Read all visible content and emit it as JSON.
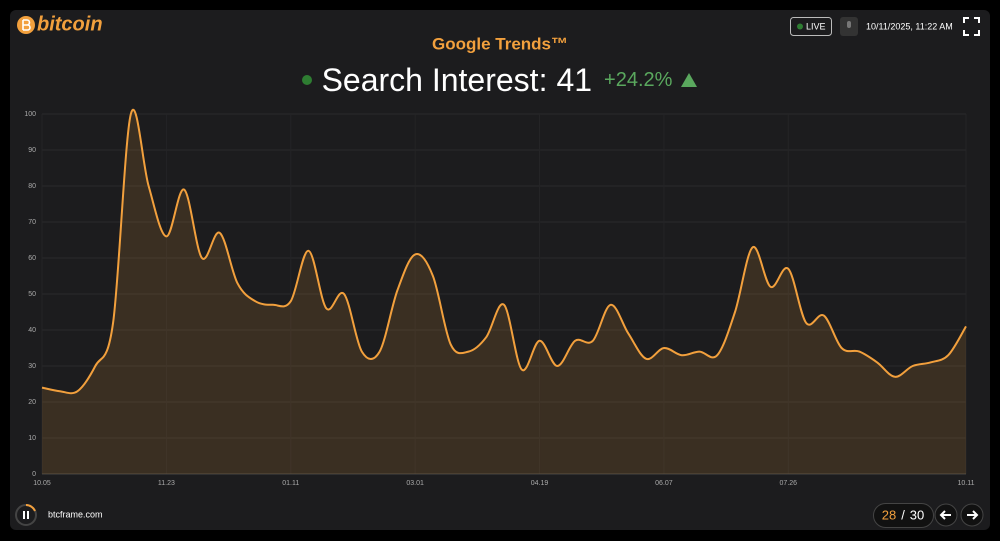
{
  "header": {
    "logo": "bitcoin",
    "live": "LIVE",
    "datetime": "10/11/2025, 11:22 AM"
  },
  "headline": {
    "title": "Google Trends™",
    "label": "Search Interest:",
    "value": 41,
    "change": "+24.2%"
  },
  "footer": {
    "site": "btcframe.com",
    "page_current": 28,
    "page_separator": "/",
    "page_total": 30
  },
  "chart_data": {
    "type": "area",
    "color": "#f2a03d",
    "categories": [
      "10.05",
      null,
      null,
      null,
      null,
      null,
      null,
      "11.23",
      null,
      null,
      null,
      null,
      null,
      null,
      "01.11",
      null,
      null,
      null,
      null,
      null,
      null,
      "03.01",
      null,
      null,
      null,
      null,
      null,
      null,
      "04.19",
      null,
      null,
      null,
      null,
      null,
      null,
      "06.07",
      null,
      null,
      null,
      null,
      null,
      null,
      "07.26",
      null,
      null,
      null,
      null,
      null,
      null,
      null,
      null,
      null,
      "10.11"
    ],
    "values": [
      24,
      23,
      23,
      30,
      42,
      100,
      80,
      66,
      79,
      60,
      67,
      53,
      48,
      47,
      48,
      62,
      46,
      50,
      34,
      34,
      51,
      61,
      55,
      36,
      34,
      38,
      47,
      29,
      37,
      30,
      37,
      37,
      47,
      39,
      32,
      35,
      33,
      34,
      33,
      45,
      63,
      52,
      57,
      42,
      44,
      35,
      34,
      31,
      27,
      30,
      31,
      33,
      41
    ],
    "ylim": [
      0,
      100
    ],
    "yticks": [
      0,
      10,
      20,
      30,
      40,
      50,
      60,
      70,
      80,
      90,
      100
    ],
    "grid": true
  }
}
